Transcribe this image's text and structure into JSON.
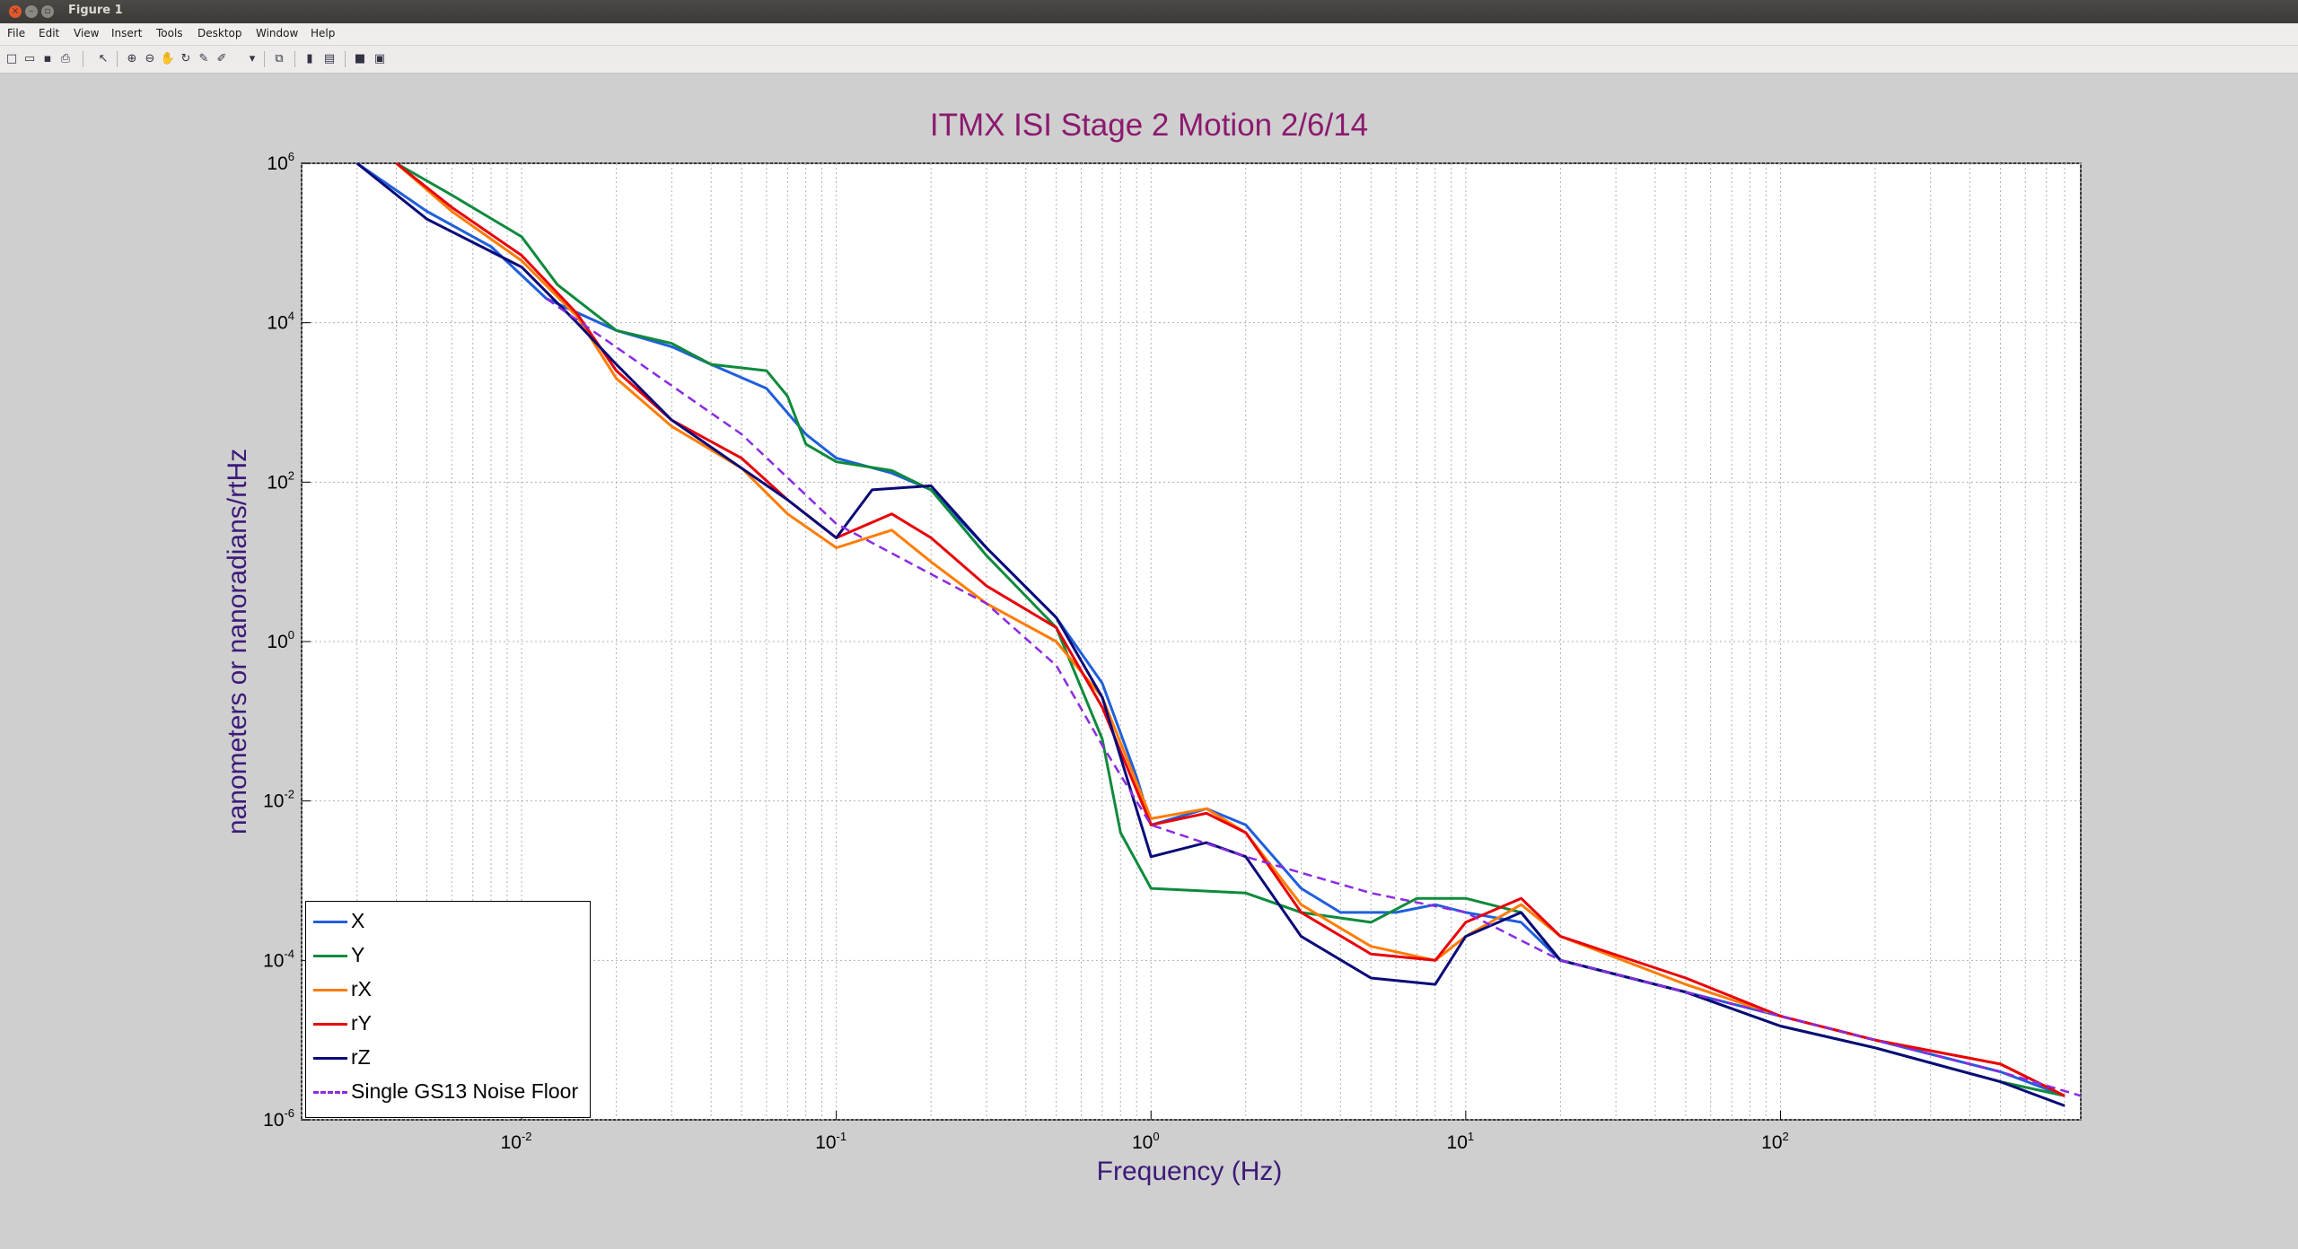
{
  "window": {
    "title": "Figure 1",
    "buttons": {
      "close": "×",
      "minimize": "–",
      "maximize": "▫"
    }
  },
  "menu": [
    "File",
    "Edit",
    "View",
    "Insert",
    "Tools",
    "Desktop",
    "Window",
    "Help"
  ],
  "toolbar": [
    {
      "name": "new-figure-icon",
      "glyph": "□"
    },
    {
      "name": "open-file-icon",
      "glyph": "▭"
    },
    {
      "name": "save-icon",
      "glyph": "▪"
    },
    {
      "name": "print-icon",
      "glyph": "⎙"
    },
    {
      "name": "pointer-icon",
      "glyph": "↖"
    },
    {
      "name": "zoom-in-icon",
      "glyph": "⊕"
    },
    {
      "name": "zoom-out-icon",
      "glyph": "⊖"
    },
    {
      "name": "pan-hand-icon",
      "glyph": "✋"
    },
    {
      "name": "rotate-3d-icon",
      "glyph": "↻"
    },
    {
      "name": "data-cursor-icon",
      "glyph": "✎"
    },
    {
      "name": "brush-icon",
      "glyph": "✐"
    },
    {
      "name": "brush-dropdown-icon",
      "glyph": "▾"
    },
    {
      "name": "link-plot-icon",
      "glyph": "⧉"
    },
    {
      "name": "colorbar-icon",
      "glyph": "▮"
    },
    {
      "name": "legend-icon",
      "glyph": "▤"
    },
    {
      "name": "hide-plot-tools-icon",
      "glyph": "■"
    },
    {
      "name": "show-plot-tools-icon",
      "glyph": "▣"
    }
  ],
  "colors": {
    "X": "#1f5fdc",
    "Y": "#0f8a3c",
    "rX": "#ff7c00",
    "rY": "#e8000a",
    "rZ": "#0a0a78",
    "noise": "#8a2be2",
    "title": "#8b1a6e",
    "axis_label": "#3d1a78"
  },
  "chart_data": {
    "type": "line",
    "title": "ITMX ISI Stage 2 Motion  2/6/14",
    "xlabel": "Frequency (Hz)",
    "ylabel": "nanometers or nanoradians/rtHz",
    "xscale": "log",
    "yscale": "log",
    "xlim": [
      0.002,
      900
    ],
    "ylim": [
      1e-06,
      1000000.0
    ],
    "grid": true,
    "legend_position": "lower-left",
    "x_ticks": [
      {
        "base": "10",
        "exp": "-2"
      },
      {
        "base": "10",
        "exp": "-1"
      },
      {
        "base": "10",
        "exp": "0"
      },
      {
        "base": "10",
        "exp": "1"
      },
      {
        "base": "10",
        "exp": "2"
      }
    ],
    "y_ticks": [
      {
        "base": "10",
        "exp": "6"
      },
      {
        "base": "10",
        "exp": "4"
      },
      {
        "base": "10",
        "exp": "2"
      },
      {
        "base": "10",
        "exp": "0"
      },
      {
        "base": "10",
        "exp": "-2"
      },
      {
        "base": "10",
        "exp": "-4"
      },
      {
        "base": "10",
        "exp": "-6"
      }
    ],
    "x_tick_values": [
      0.01,
      0.1,
      1,
      10,
      100
    ],
    "y_tick_values": [
      1000000.0,
      10000.0,
      100.0,
      1,
      0.01,
      0.0001,
      1e-06
    ],
    "series": [
      {
        "name": "X",
        "color": "#1f5fdc",
        "dash": false,
        "points": [
          [
            0.003,
            1000000.0
          ],
          [
            0.005,
            250000.0
          ],
          [
            0.008,
            90000.0
          ],
          [
            0.012,
            20000.0
          ],
          [
            0.02,
            8000.0
          ],
          [
            0.03,
            5000.0
          ],
          [
            0.04,
            3000.0
          ],
          [
            0.06,
            1500.0
          ],
          [
            0.08,
            400
          ],
          [
            0.1,
            200
          ],
          [
            0.15,
            130
          ],
          [
            0.2,
            80
          ],
          [
            0.3,
            15
          ],
          [
            0.5,
            2
          ],
          [
            0.7,
            0.3
          ],
          [
            0.9,
            0.02
          ],
          [
            1.0,
            0.005
          ],
          [
            1.5,
            0.008
          ],
          [
            2,
            0.005
          ],
          [
            3,
            0.0008
          ],
          [
            4,
            0.0004
          ],
          [
            6,
            0.0004
          ],
          [
            8,
            0.0005
          ],
          [
            10,
            0.0004
          ],
          [
            15,
            0.0003
          ],
          [
            20,
            0.0001
          ],
          [
            50,
            4e-05
          ],
          [
            100,
            2e-05
          ],
          [
            200,
            1e-05
          ],
          [
            500,
            4e-06
          ],
          [
            800,
            2e-06
          ]
        ]
      },
      {
        "name": "Y",
        "color": "#0f8a3c",
        "dash": false,
        "points": [
          [
            0.004,
            1000000.0
          ],
          [
            0.006,
            400000.0
          ],
          [
            0.01,
            120000.0
          ],
          [
            0.013,
            30000.0
          ],
          [
            0.02,
            8000.0
          ],
          [
            0.03,
            5500.0
          ],
          [
            0.04,
            3000.0
          ],
          [
            0.06,
            2500.0
          ],
          [
            0.07,
            1200.0
          ],
          [
            0.08,
            300
          ],
          [
            0.1,
            180
          ],
          [
            0.15,
            140
          ],
          [
            0.2,
            80
          ],
          [
            0.3,
            12
          ],
          [
            0.5,
            1.5
          ],
          [
            0.7,
            0.06
          ],
          [
            0.8,
            0.004
          ],
          [
            1,
            0.0008
          ],
          [
            2,
            0.0007
          ],
          [
            3,
            0.0004
          ],
          [
            5,
            0.0003
          ],
          [
            7,
            0.0006
          ],
          [
            10,
            0.0006
          ],
          [
            15,
            0.0004
          ],
          [
            20,
            0.0001
          ],
          [
            50,
            4e-05
          ],
          [
            100,
            1.5e-05
          ],
          [
            200,
            8e-06
          ],
          [
            500,
            3e-06
          ],
          [
            800,
            2e-06
          ]
        ]
      },
      {
        "name": "rX",
        "color": "#ff7c00",
        "dash": false,
        "points": [
          [
            0.004,
            1000000.0
          ],
          [
            0.006,
            250000.0
          ],
          [
            0.01,
            60000.0
          ],
          [
            0.015,
            12000.0
          ],
          [
            0.02,
            2000.0
          ],
          [
            0.03,
            500
          ],
          [
            0.05,
            150
          ],
          [
            0.07,
            40
          ],
          [
            0.1,
            15
          ],
          [
            0.15,
            25
          ],
          [
            0.2,
            10
          ],
          [
            0.3,
            3
          ],
          [
            0.5,
            1
          ],
          [
            0.7,
            0.2
          ],
          [
            1,
            0.006
          ],
          [
            1.5,
            0.008
          ],
          [
            2,
            0.004
          ],
          [
            3,
            0.0005
          ],
          [
            5,
            0.00015
          ],
          [
            8,
            0.0001
          ],
          [
            10,
            0.0002
          ],
          [
            15,
            0.0005
          ],
          [
            20,
            0.0002
          ],
          [
            50,
            5e-05
          ],
          [
            100,
            2e-05
          ],
          [
            200,
            1e-05
          ],
          [
            500,
            5e-06
          ],
          [
            800,
            2e-06
          ]
        ]
      },
      {
        "name": "rY",
        "color": "#e8000a",
        "dash": false,
        "points": [
          [
            0.004,
            1000000.0
          ],
          [
            0.006,
            280000.0
          ],
          [
            0.01,
            70000.0
          ],
          [
            0.015,
            13000.0
          ],
          [
            0.02,
            2500.0
          ],
          [
            0.03,
            600
          ],
          [
            0.05,
            200
          ],
          [
            0.07,
            60
          ],
          [
            0.1,
            20
          ],
          [
            0.15,
            40
          ],
          [
            0.2,
            20
          ],
          [
            0.3,
            5
          ],
          [
            0.5,
            1.5
          ],
          [
            0.7,
            0.15
          ],
          [
            1,
            0.005
          ],
          [
            1.5,
            0.007
          ],
          [
            2,
            0.004
          ],
          [
            3,
            0.0004
          ],
          [
            5,
            0.00012
          ],
          [
            8,
            0.0001
          ],
          [
            10,
            0.0003
          ],
          [
            15,
            0.0006
          ],
          [
            20,
            0.0002
          ],
          [
            50,
            6e-05
          ],
          [
            100,
            2e-05
          ],
          [
            200,
            1e-05
          ],
          [
            500,
            5e-06
          ],
          [
            800,
            2e-06
          ]
        ]
      },
      {
        "name": "rZ",
        "color": "#0a0a78",
        "dash": false,
        "points": [
          [
            0.003,
            1000000.0
          ],
          [
            0.005,
            200000.0
          ],
          [
            0.01,
            50000.0
          ],
          [
            0.015,
            10000.0
          ],
          [
            0.02,
            3000.0
          ],
          [
            0.03,
            600
          ],
          [
            0.05,
            150
          ],
          [
            0.07,
            60
          ],
          [
            0.1,
            20
          ],
          [
            0.13,
            80
          ],
          [
            0.2,
            90
          ],
          [
            0.3,
            15
          ],
          [
            0.5,
            2
          ],
          [
            0.7,
            0.2
          ],
          [
            1,
            0.002
          ],
          [
            1.5,
            0.003
          ],
          [
            2,
            0.002
          ],
          [
            3,
            0.0002
          ],
          [
            5,
            6e-05
          ],
          [
            8,
            5e-05
          ],
          [
            10,
            0.0002
          ],
          [
            15,
            0.0004
          ],
          [
            20,
            0.0001
          ],
          [
            50,
            4e-05
          ],
          [
            100,
            1.5e-05
          ],
          [
            200,
            8e-06
          ],
          [
            500,
            3e-06
          ],
          [
            800,
            1.5e-06
          ]
        ]
      },
      {
        "name": "Single GS13 Noise Floor",
        "color": "#8a2be2",
        "dash": true,
        "points": [
          [
            0.012,
            20000.0
          ],
          [
            0.05,
            400
          ],
          [
            0.1,
            30
          ],
          [
            0.3,
            3
          ],
          [
            0.5,
            0.5
          ],
          [
            0.7,
            0.05
          ],
          [
            1,
            0.005
          ],
          [
            2,
            0.002
          ],
          [
            5,
            0.0007
          ],
          [
            10,
            0.0004
          ],
          [
            20,
            0.0001
          ],
          [
            50,
            4e-05
          ],
          [
            100,
            2e-05
          ],
          [
            200,
            1e-05
          ],
          [
            500,
            4e-06
          ],
          [
            900,
            2e-06
          ]
        ]
      }
    ]
  }
}
